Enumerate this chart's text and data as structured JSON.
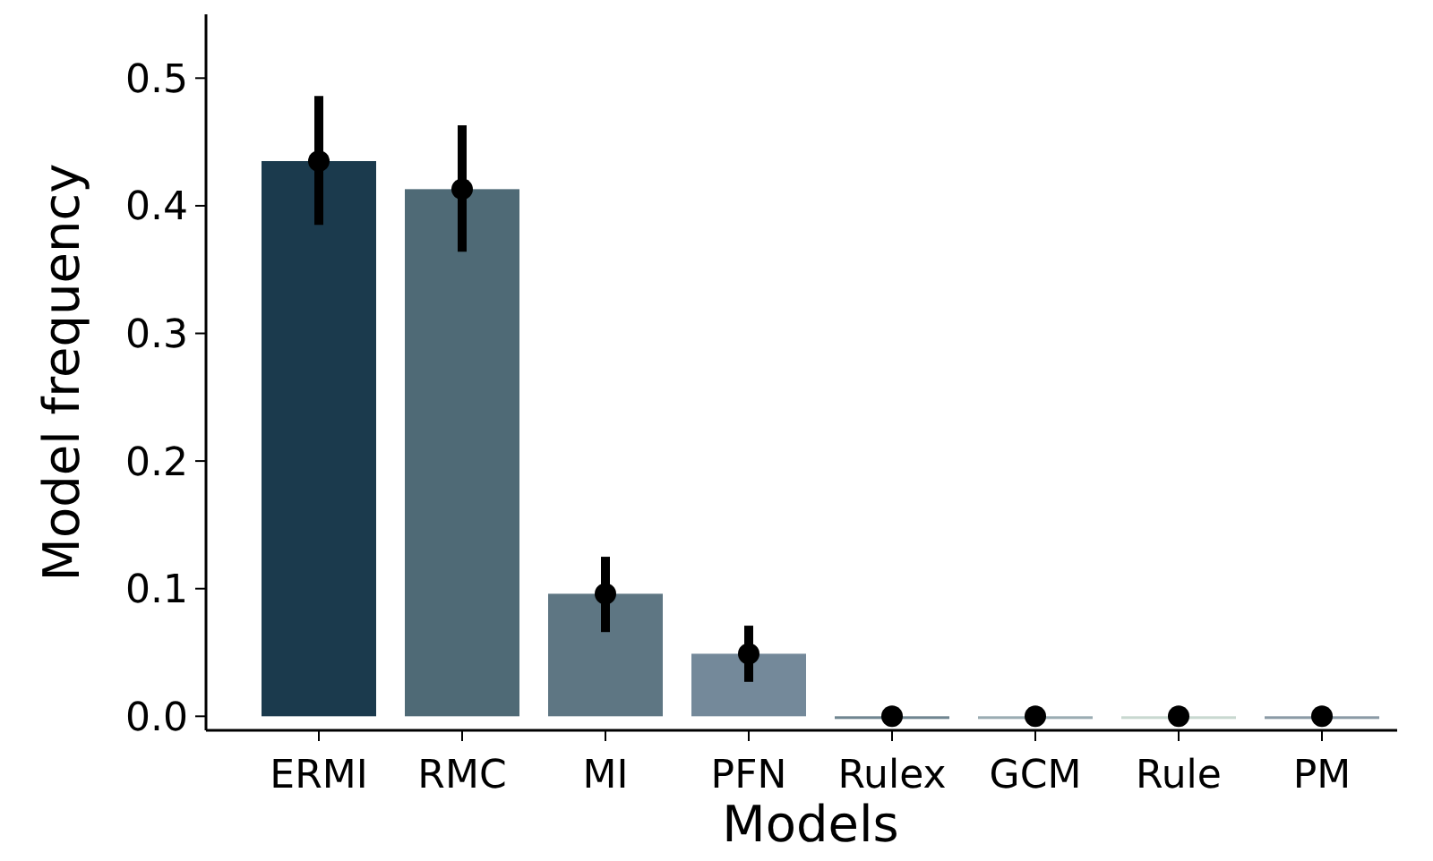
{
  "chart_data": {
    "type": "bar",
    "xlabel": "Models",
    "ylabel": "Model frequency",
    "categories": [
      "ERMI",
      "RMC",
      "MI",
      "PFN",
      "Rulex",
      "GCM",
      "Rule",
      "PM"
    ],
    "series": [
      {
        "values": [
          0.435,
          0.413,
          0.096,
          0.049,
          0,
          0,
          0,
          0
        ],
        "errors": [
          [
            0.385,
            0.486
          ],
          [
            0.364,
            0.463
          ],
          [
            0.066,
            0.125
          ],
          [
            0.027,
            0.071
          ],
          null,
          null,
          null,
          null
        ],
        "colors": [
          "#1b3a4d",
          "#4f6a76",
          "#5e7683",
          "#74899a",
          "#6f8590",
          "#9aacb2",
          "#c8d8d0",
          "#8a9aa5"
        ]
      },
      {
        "type": "scatter",
        "x": [
          "ERMI",
          "RMC",
          "MI",
          "PFN",
          "Rulex",
          "GCM",
          "Rule",
          "PM"
        ],
        "values": [
          0.435,
          0.413,
          0.096,
          0.049,
          0,
          0,
          0,
          0
        ],
        "color": "#000000",
        "marker": "circle"
      }
    ],
    "ylim": [
      -0.011,
      0.55
    ],
    "yticks": [
      {
        "value": 0,
        "label": "0.0"
      },
      0.1,
      0.2,
      0.3,
      0.4,
      0.5
    ]
  }
}
